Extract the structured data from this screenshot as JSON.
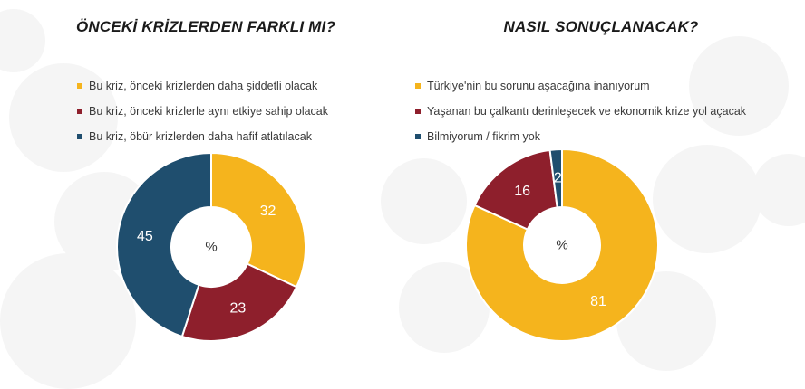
{
  "colors": {
    "yellow": "#f5b41d",
    "red": "#8e1f2c",
    "blue": "#1f4e6e"
  },
  "chart_data": [
    {
      "type": "pie",
      "title": "ÖNCEKİ KRİZLERDEN FARKLI MI?",
      "center_label": "%",
      "categories": [
        "Bu kriz, önceki krizlerden daha şiddetli olacak",
        "Bu kriz, önceki krizlerle aynı etkiye sahip olacak",
        "Bu kriz, öbür krizlerden daha hafif atlatılacak"
      ],
      "values": [
        32,
        23,
        45
      ],
      "legend_position": "top",
      "donut": true
    },
    {
      "type": "pie",
      "title": "NASIL SONUÇLANACAK?",
      "center_label": "%",
      "categories": [
        "Türkiye'nin bu sorunu aşacağına inanıyorum",
        "Yaşanan bu çalkantı derinleşecek ve ekonomik krize yol açacak",
        "Bilmiyorum / fikrim yok"
      ],
      "values": [
        81,
        16,
        2
      ],
      "legend_position": "top",
      "donut": true
    }
  ]
}
